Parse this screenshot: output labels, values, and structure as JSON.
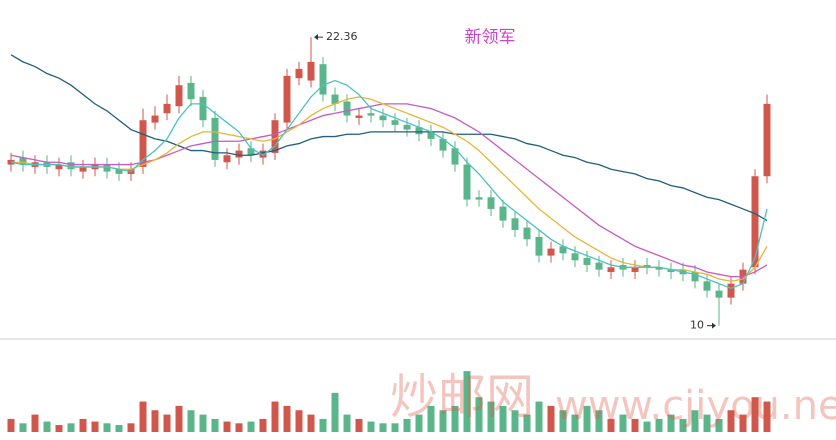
{
  "chart_data": {
    "type": "candlestick",
    "title": "新领军",
    "annotations": [
      {
        "text": "22.36",
        "index": 25,
        "value": 22.36
      },
      {
        "text": "10",
        "index": 59,
        "value": 10
      }
    ],
    "watermark": [
      "炒邮网",
      "www.cjiyou.net"
    ],
    "ylim": [
      9.6,
      23.95
    ],
    "vlim": [
      0,
      100
    ],
    "up_color": "#d0574c",
    "down_color": "#5bb58b",
    "open": [
      16.9,
      17.2,
      16.8,
      17.0,
      16.7,
      17.0,
      16.6,
      16.7,
      16.9,
      16.7,
      16.5,
      16.8,
      18.7,
      19.1,
      19.4,
      20.4,
      19.8,
      18.9,
      17.0,
      17.2,
      17.6,
      17.2,
      17.4,
      18.7,
      20.6,
      20.5,
      21.2,
      19.9,
      19.6,
      18.9,
      19.1,
      19.0,
      18.8,
      18.6,
      18.5,
      18.3,
      18.0,
      17.6,
      16.9,
      15.5,
      15.5,
      15.1,
      14.6,
      14.2,
      13.8,
      13.0,
      13.4,
      13.1,
      12.9,
      12.7,
      12.3,
      12.6,
      12.3,
      12.6,
      12.5,
      12.4,
      12.4,
      12.3,
      11.9,
      11.5,
      11.2,
      11.8,
      12.5,
      16.4
    ],
    "high": [
      17.4,
      17.5,
      17.3,
      17.3,
      17.2,
      17.3,
      17.1,
      17.2,
      17.2,
      17.0,
      17.0,
      19.3,
      19.4,
      19.9,
      20.7,
      20.7,
      20.1,
      19.2,
      17.6,
      17.8,
      17.9,
      17.8,
      19.1,
      21.0,
      21.3,
      22.36,
      21.5,
      20.2,
      19.9,
      19.3,
      19.4,
      19.3,
      19.1,
      18.9,
      18.8,
      18.6,
      18.3,
      17.9,
      17.2,
      15.8,
      15.8,
      15.4,
      14.9,
      14.5,
      14.1,
      13.6,
      13.7,
      13.4,
      13.2,
      13.0,
      12.8,
      12.9,
      12.8,
      12.9,
      12.8,
      12.7,
      12.7,
      12.6,
      12.2,
      11.8,
      12.1,
      12.7,
      16.7,
      19.9
    ],
    "low": [
      16.6,
      16.6,
      16.5,
      16.5,
      16.4,
      16.4,
      16.3,
      16.4,
      16.3,
      16.2,
      16.2,
      16.5,
      18.4,
      18.8,
      19.1,
      19.4,
      18.5,
      16.8,
      16.7,
      16.9,
      17.0,
      16.9,
      17.1,
      18.4,
      20.3,
      20.2,
      19.6,
      19.2,
      18.7,
      18.6,
      18.7,
      18.5,
      18.3,
      18.1,
      17.9,
      17.7,
      17.2,
      16.6,
      15.1,
      15.1,
      14.7,
      14.2,
      13.8,
      13.4,
      12.7,
      12.7,
      12.8,
      12.5,
      12.3,
      12.1,
      12.0,
      12.1,
      12.0,
      12.2,
      12.1,
      12.0,
      11.9,
      11.6,
      11.2,
      10,
      10.9,
      11.5,
      12.2,
      16.1
    ],
    "close": [
      17.1,
      16.9,
      17.0,
      16.8,
      16.9,
      16.7,
      16.8,
      16.9,
      16.6,
      16.5,
      16.7,
      18.8,
      19.0,
      19.5,
      20.3,
      19.7,
      18.8,
      17.1,
      17.3,
      17.5,
      17.3,
      17.5,
      18.8,
      20.7,
      21.0,
      21.3,
      19.9,
      19.5,
      19.0,
      19.0,
      19.0,
      18.8,
      18.6,
      18.4,
      18.2,
      18.0,
      17.5,
      16.9,
      15.4,
      15.4,
      15.0,
      14.5,
      14.1,
      13.7,
      13.0,
      13.3,
      13.1,
      12.8,
      12.6,
      12.4,
      12.5,
      12.4,
      12.5,
      12.5,
      12.4,
      12.3,
      12.2,
      11.9,
      11.5,
      11.2,
      11.8,
      12.4,
      16.4,
      19.5
    ],
    "volume": [
      15,
      10,
      20,
      12,
      8,
      10,
      15,
      12,
      10,
      8,
      10,
      35,
      25,
      20,
      30,
      25,
      20,
      15,
      12,
      10,
      12,
      15,
      35,
      30,
      25,
      20,
      15,
      45,
      20,
      15,
      12,
      10,
      10,
      15,
      20,
      30,
      25,
      30,
      70,
      40,
      35,
      30,
      25,
      20,
      35,
      30,
      25,
      20,
      30,
      25,
      15,
      20,
      15,
      12,
      15,
      20,
      15,
      25,
      20,
      15,
      25,
      20,
      40,
      35
    ],
    "lines": [
      {
        "color": "#1f5f7f",
        "values": [
          21.6,
          21.3,
          21.1,
          20.8,
          20.6,
          20.3,
          19.9,
          19.5,
          19.2,
          18.8,
          18.4,
          18.2,
          18.0,
          17.9,
          17.7,
          17.5,
          17.5,
          17.4,
          17.4,
          17.3,
          17.3,
          17.4,
          17.5,
          17.7,
          17.8,
          18.0,
          18.1,
          18.1,
          18.2,
          18.2,
          18.3,
          18.3,
          18.3,
          18.3,
          18.3,
          18.3,
          18.3,
          18.2,
          18.2,
          18.2,
          18.2,
          18.1,
          18.0,
          17.8,
          17.7,
          17.5,
          17.3,
          17.2,
          17.0,
          16.9,
          16.7,
          16.6,
          16.5,
          16.3,
          16.2,
          16.0,
          15.9,
          15.7,
          15.5,
          15.4,
          15.2,
          15.0,
          14.8,
          14.5
        ]
      },
      {
        "color": "#c75bbf",
        "values": [
          17.3,
          17.2,
          17.1,
          17.0,
          17.0,
          16.9,
          16.9,
          16.9,
          16.9,
          16.9,
          16.9,
          17.0,
          17.1,
          17.3,
          17.5,
          17.7,
          17.8,
          17.9,
          17.9,
          17.9,
          18.0,
          18.1,
          18.2,
          18.4,
          18.6,
          18.8,
          19.0,
          19.1,
          19.2,
          19.3,
          19.4,
          19.5,
          19.5,
          19.5,
          19.4,
          19.3,
          19.1,
          18.9,
          18.6,
          18.3,
          17.9,
          17.5,
          17.1,
          16.7,
          16.3,
          15.9,
          15.5,
          15.1,
          14.7,
          14.3,
          14.0,
          13.7,
          13.4,
          13.2,
          13.0,
          12.8,
          12.6,
          12.5,
          12.3,
          12.2,
          12.1,
          12.1,
          12.3,
          12.6
        ]
      },
      {
        "color": "#e8b53a",
        "values": [
          17.0,
          17.0,
          16.9,
          16.9,
          16.9,
          16.8,
          16.8,
          16.8,
          16.8,
          16.7,
          16.7,
          16.9,
          17.1,
          17.4,
          17.8,
          18.1,
          18.3,
          18.3,
          18.2,
          18.1,
          18.0,
          17.9,
          18.0,
          18.3,
          18.6,
          19.0,
          19.3,
          19.5,
          19.7,
          19.8,
          19.7,
          19.5,
          19.3,
          19.1,
          18.9,
          18.7,
          18.5,
          18.2,
          17.9,
          17.5,
          17.0,
          16.5,
          16.0,
          15.5,
          15.0,
          14.6,
          14.2,
          13.8,
          13.5,
          13.2,
          12.9,
          12.7,
          12.6,
          12.5,
          12.5,
          12.4,
          12.4,
          12.3,
          12.2,
          12.0,
          11.9,
          12.0,
          12.5,
          13.4
        ]
      },
      {
        "color": "#4cc1bf",
        "values": [
          17.0,
          16.9,
          16.9,
          16.9,
          16.9,
          16.8,
          16.8,
          16.8,
          16.8,
          16.7,
          16.6,
          17.1,
          17.5,
          18.0,
          18.9,
          19.5,
          19.5,
          19.1,
          18.7,
          18.3,
          17.6,
          17.3,
          17.7,
          18.4,
          19.1,
          19.8,
          20.3,
          20.5,
          20.3,
          19.9,
          19.3,
          19.1,
          18.9,
          18.7,
          18.5,
          18.3,
          18.0,
          17.6,
          17.0,
          16.5,
          15.9,
          15.3,
          14.9,
          14.5,
          14.1,
          13.7,
          13.4,
          13.2,
          13.0,
          12.8,
          12.6,
          12.5,
          12.5,
          12.5,
          12.5,
          12.4,
          12.3,
          12.2,
          12.0,
          11.8,
          11.6,
          11.8,
          12.9,
          15.0
        ]
      }
    ]
  }
}
